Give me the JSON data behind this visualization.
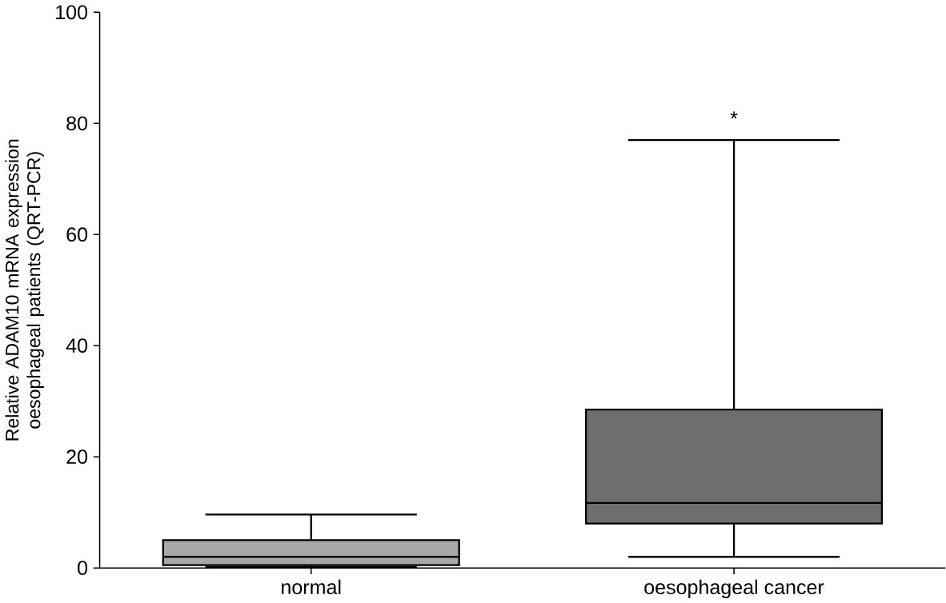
{
  "chart_data": {
    "type": "box",
    "ylabel": "Relative ADAM10 mRNA expression oesophageal patients (QRT-PCR)",
    "categories": [
      "normal",
      "oesophageal cancer"
    ],
    "boxes": [
      {
        "low": 0.2,
        "q1": 0.5,
        "median": 2,
        "q3": 5,
        "high": 9.6
      },
      {
        "low": 2,
        "q1": 8,
        "median": 11.7,
        "q3": 28.5,
        "high": 77
      }
    ],
    "colors": [
      "#a8a8a8",
      "#6e6e6e"
    ],
    "ylim": [
      0,
      100
    ],
    "yticks": [
      0,
      20,
      40,
      60,
      80,
      100
    ],
    "annotations": [
      "*"
    ]
  }
}
